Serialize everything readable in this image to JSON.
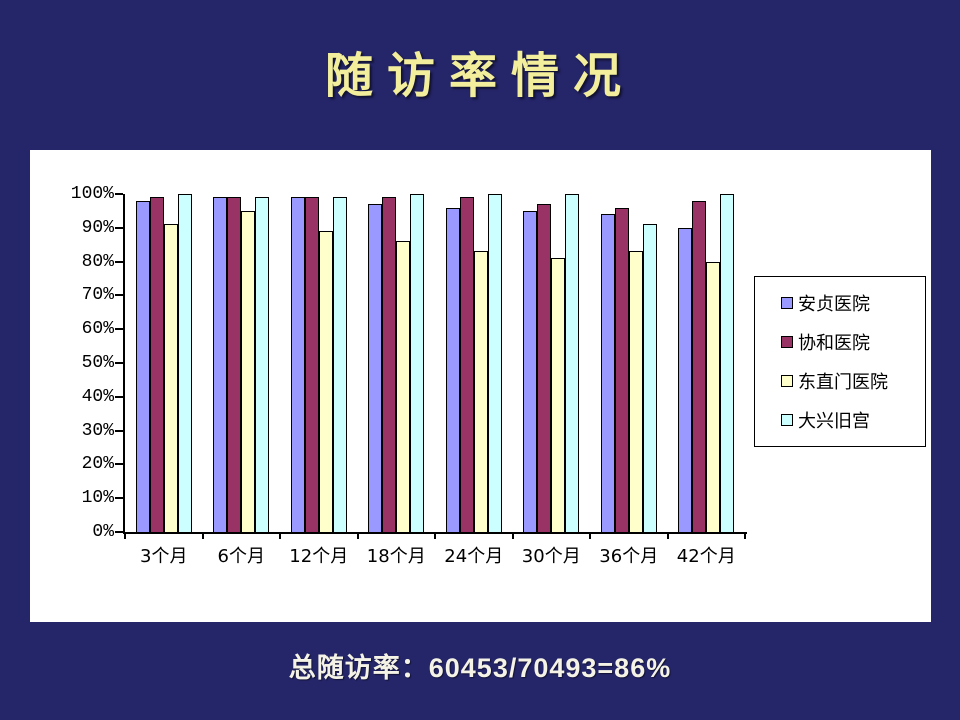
{
  "slide": {
    "title": "随访率情况",
    "footer_text": "总随访率：60453/70493=86%",
    "background_color": "#252569",
    "title_color": "#F2EE9C",
    "footer_color": "#F4F3E6"
  },
  "chart_data": {
    "type": "bar",
    "title": "",
    "categories": [
      "3个月",
      "6个月",
      "12个月",
      "18个月",
      "24个月",
      "30个月",
      "36个月",
      "42个月"
    ],
    "series": [
      {
        "name": "安贞医院",
        "color": "#9999FF",
        "values": [
          98,
          99,
          99,
          97,
          96,
          95,
          94,
          90
        ]
      },
      {
        "name": "协和医院",
        "color": "#993366",
        "values": [
          99,
          99,
          99,
          99,
          99,
          97,
          96,
          98
        ]
      },
      {
        "name": "东直门医院",
        "color": "#FFFFCC",
        "values": [
          91,
          95,
          89,
          86,
          83,
          81,
          83,
          80
        ]
      },
      {
        "name": "大兴旧宫",
        "color": "#CCFFFF",
        "values": [
          100,
          99,
          99,
          100,
          100,
          100,
          91,
          100
        ]
      }
    ],
    "xlabel": "",
    "ylabel": "",
    "ylim": [
      0,
      100
    ],
    "ytick_step": 10,
    "ytick_labels": [
      "0%",
      "10%",
      "20%",
      "30%",
      "40%",
      "50%",
      "60%",
      "70%",
      "80%",
      "90%",
      "100%"
    ],
    "grid": false,
    "legend_position": "right",
    "plot_background": "#FFFFFF",
    "axis_color": "#000000",
    "bar_border_color": "#000000"
  }
}
